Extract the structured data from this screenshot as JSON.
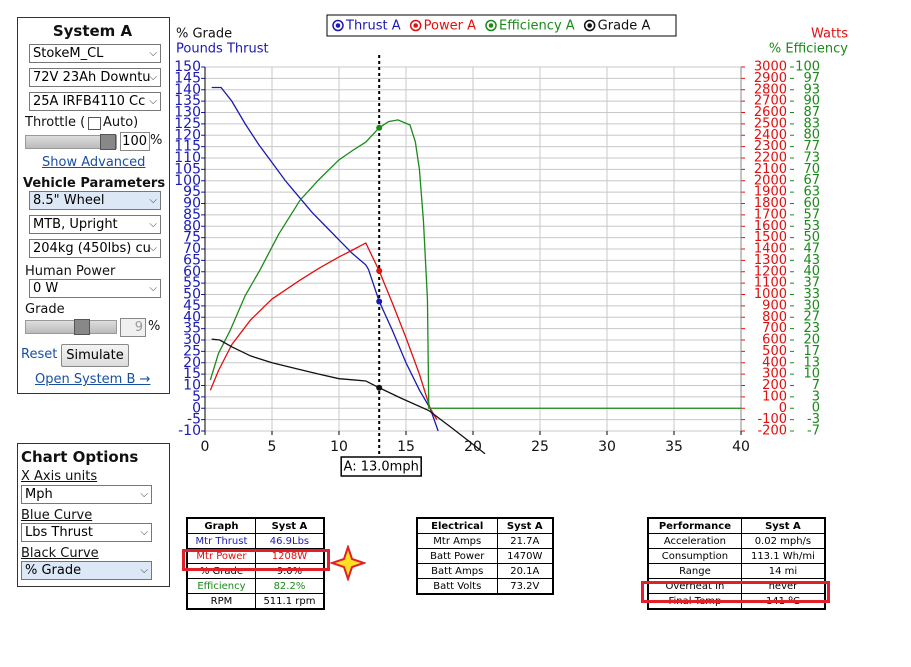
{
  "system_panel": {
    "title": "System A",
    "motor": "StokeM_CL",
    "battery": "72V 23Ah Downtu",
    "controller": "25A IRFB4110 Cc",
    "throttle_label": "Throttle (",
    "auto_label": "Auto)",
    "throttle_value": 100,
    "percent": "%",
    "show_advanced": "Show Advanced",
    "vehicle_heading": "Vehicle Parameters",
    "wheel": "8.5\"  Wheel",
    "position": "MTB, Upright",
    "weight": "204kg (450lbs) cu",
    "human_power_label": "Human Power",
    "human_power": "0 W",
    "grade_label": "Grade",
    "grade_value": 9,
    "reset": "Reset",
    "simulate": "Simulate",
    "open_b": "Open System B →"
  },
  "chart_options": {
    "title": "Chart Options",
    "x_units_label": "X Axis units",
    "x_units": "Mph",
    "blue_label": "Blue Curve",
    "blue": "Lbs Thrust",
    "black_label": "Black Curve",
    "black": "% Grade"
  },
  "chart_data": {
    "type": "line",
    "ylabel_top": "% Grade",
    "ylabel": "Pounds Thrust",
    "y2label": "Watts",
    "y3label": "% Efficiency",
    "xlim": [
      0,
      40
    ],
    "xticks": [
      0,
      5,
      10,
      15,
      20,
      25,
      30,
      35,
      40
    ],
    "ylim": [
      -10,
      150
    ],
    "yticks": [
      -10,
      -5,
      0,
      5,
      10,
      15,
      20,
      25,
      30,
      35,
      40,
      45,
      50,
      55,
      60,
      65,
      70,
      75,
      80,
      85,
      90,
      95,
      100,
      105,
      110,
      115,
      120,
      125,
      130,
      135,
      140,
      145,
      150
    ],
    "y2lim": [
      -200,
      3000
    ],
    "y2ticks": [
      -200,
      -100,
      0,
      100,
      200,
      300,
      400,
      500,
      600,
      700,
      800,
      900,
      1000,
      1100,
      1200,
      1300,
      1400,
      1500,
      1600,
      1700,
      1800,
      1900,
      2000,
      2100,
      2200,
      2300,
      2400,
      2500,
      2600,
      2700,
      2800,
      2900,
      3000
    ],
    "y3lim": [
      -6.667,
      100
    ],
    "y3ticks": [
      {
        "value": -6.667,
        "label": "-7"
      },
      {
        "value": -3.333,
        "label": "-3"
      },
      0,
      {
        "value": 3.333,
        "label": "3"
      },
      {
        "value": 6.667,
        "label": "7"
      },
      10,
      {
        "value": 13.333,
        "label": "13"
      },
      {
        "value": 16.667,
        "label": "17"
      },
      20,
      {
        "value": 23.333,
        "label": "23"
      },
      {
        "value": 26.667,
        "label": "27"
      },
      30,
      {
        "value": 33.333,
        "label": "33"
      },
      {
        "value": 36.667,
        "label": "37"
      },
      40,
      {
        "value": 43.333,
        "label": "43"
      },
      {
        "value": 46.667,
        "label": "47"
      },
      50,
      {
        "value": 53.333,
        "label": "53"
      },
      {
        "value": 56.667,
        "label": "57"
      },
      60,
      {
        "value": 63.333,
        "label": "63"
      },
      {
        "value": 66.667,
        "label": "67"
      },
      70,
      {
        "value": 73.333,
        "label": "73"
      },
      {
        "value": 76.667,
        "label": "77"
      },
      80,
      {
        "value": 83.333,
        "label": "83"
      },
      {
        "value": 86.667,
        "label": "87"
      },
      90,
      {
        "value": 93.333,
        "label": "93"
      },
      {
        "value": 96.667,
        "label": "97"
      },
      100
    ],
    "grid": true,
    "cursor_x": 13,
    "cursor_label": "A: 13.0mph",
    "series": [
      {
        "name": "Thrust A",
        "color": "#1a1ab4",
        "axis": "y",
        "cursor_value": 46.9,
        "x": [
          0.5,
          1.2,
          2,
          3,
          4,
          5,
          6,
          7,
          8,
          9,
          10,
          11,
          12,
          12.2,
          13,
          14,
          15,
          16,
          16.8,
          17.4
        ],
        "values": [
          141,
          141,
          135,
          125,
          116,
          108,
          100,
          93,
          86,
          80,
          74,
          68,
          63,
          61,
          47,
          34,
          20,
          8,
          0,
          -10
        ]
      },
      {
        "name": "Power A",
        "color": "#e01010",
        "axis": "y2",
        "cursor_value": 1208,
        "x": [
          0.4,
          1,
          2,
          3.4,
          5,
          7.1,
          8.5,
          10,
          11,
          12,
          13,
          14,
          15,
          16,
          16.8,
          17.3
        ],
        "values": [
          158,
          330,
          560,
          776,
          960,
          1127,
          1230,
          1330,
          1390,
          1453,
          1208,
          920,
          620,
          300,
          0,
          -100
        ]
      },
      {
        "name": "Efficiency A",
        "color": "#1a8a1a",
        "axis": "y3",
        "cursor_value": 82.2,
        "x": [
          0.4,
          1,
          1.9,
          3,
          4.1,
          5.5,
          7.1,
          8.5,
          10,
          11,
          12,
          13,
          13.7,
          14.4,
          15.3,
          15.7,
          16,
          16.3,
          16.6,
          16.7,
          20,
          30,
          40
        ],
        "values": [
          8.3,
          16,
          23,
          33,
          40.5,
          51,
          61,
          67,
          72.8,
          75.5,
          78,
          82.2,
          84,
          84.5,
          83,
          78,
          70,
          55,
          32,
          0,
          0,
          0,
          0
        ]
      },
      {
        "name": "Grade A",
        "color": "#111111",
        "axis": "y",
        "cursor_value": 9,
        "x": [
          0.5,
          1.1,
          2,
          3.4,
          5,
          7.1,
          8.5,
          10,
          11,
          12,
          13,
          14.6,
          16.7,
          18.5,
          20.9
        ],
        "values": [
          30.4,
          30,
          27,
          23,
          20,
          17,
          15,
          13,
          12.5,
          12,
          9,
          4.5,
          -1,
          -9,
          -20
        ]
      }
    ]
  },
  "tables": [
    {
      "header": [
        "Graph",
        "Syst A"
      ],
      "rows": [
        [
          "Mtr Thrust",
          "46.9Lbs"
        ],
        [
          "Mtr Power",
          "1208W"
        ],
        [
          "% Grade",
          "9.0%"
        ],
        [
          "Efficiency",
          "82.2%"
        ],
        [
          "RPM",
          "511.1 rpm"
        ]
      ]
    },
    {
      "header": [
        "Electrical",
        "Syst A"
      ],
      "rows": [
        [
          "Mtr Amps",
          "21.7A"
        ],
        [
          "Batt Power",
          "1470W"
        ],
        [
          "Batt Amps",
          "20.1A"
        ],
        [
          "Batt Volts",
          "73.2V"
        ]
      ]
    },
    {
      "header": [
        "Performance",
        "Syst A"
      ],
      "rows": [
        [
          "Acceleration",
          "0.02 mph/s"
        ],
        [
          "Consumption",
          "113.1 Wh/mi"
        ],
        [
          "Range",
          "14 mi"
        ],
        [
          "Overheat In",
          "never"
        ],
        [
          "Final Temp",
          "141 ºC"
        ]
      ]
    }
  ]
}
